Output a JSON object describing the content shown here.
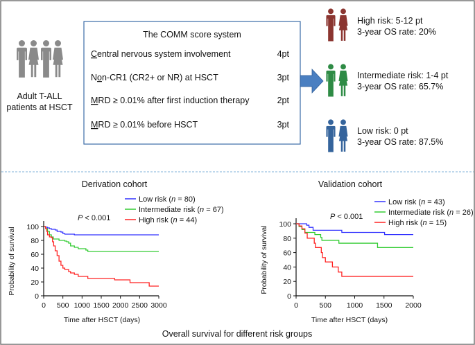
{
  "patients_label": [
    "Adult T-ALL",
    "patients at HSCT"
  ],
  "score_box": {
    "title": "The COMM score system",
    "rows": [
      {
        "pre": "",
        "u": "C",
        "post": "entral nervous system involvement",
        "pt": "4pt"
      },
      {
        "pre": "N",
        "u": "o",
        "post": "n-CR1 (CR2+ or NR) at HSCT",
        "pt": "3pt"
      },
      {
        "pre": "",
        "u": "M",
        "post": "RD ≥ 0.01% after first induction therapy",
        "pt": "2pt"
      },
      {
        "pre": "",
        "u": "M",
        "post": "RD ≥ 0.01% before HSCT",
        "pt": "3pt"
      }
    ]
  },
  "risk_groups": [
    {
      "line1": "High risk: 5-12 pt",
      "line2": "3-year OS rate: 20%",
      "color": "#8b3530"
    },
    {
      "line1": "Intermediate risk: 1-4 pt",
      "line2": "3-year OS rate: 65.7%",
      "color": "#2e8b45"
    },
    {
      "line1": "Low risk: 0 pt",
      "line2": "3-year OS rate: 87.5%",
      "color": "#35649c"
    }
  ],
  "colors": {
    "patients": "#8a8a8a",
    "arrow": "#4a7fc1",
    "box_border": "#3a6aa6",
    "divider": "#7fb0d8"
  },
  "caption": "Overall survival for different risk groups",
  "chart_data": [
    {
      "type": "line",
      "step": true,
      "title": "Derivation cohort",
      "xlabel": "Time after HSCT (days)",
      "ylabel": "Probability of survival",
      "annotation": {
        "p": "P",
        "rest": " < 0.001"
      },
      "xlim": [
        0,
        3000
      ],
      "ylim": [
        0,
        100
      ],
      "xticks": [
        "0",
        "500",
        "1000",
        "1500",
        "2000",
        "2500",
        "3000"
      ],
      "yticks": [
        "0",
        "20",
        "40",
        "60",
        "80",
        "100"
      ],
      "legend_position": "top-right",
      "series": [
        {
          "name": "Low risk",
          "n": "80",
          "color": "#3333ff",
          "x": [
            0,
            50,
            100,
            150,
            200,
            300,
            350,
            450,
            500,
            550,
            800,
            3000
          ],
          "y": [
            100,
            99,
            98,
            97,
            96,
            95,
            93,
            92,
            90,
            89,
            88,
            88
          ]
        },
        {
          "name": "Intermediate risk",
          "n": "67",
          "color": "#33cc33",
          "x": [
            0,
            50,
            100,
            150,
            200,
            250,
            400,
            550,
            600,
            650,
            700,
            800,
            900,
            1100,
            1150,
            3000
          ],
          "y": [
            100,
            97,
            93,
            88,
            85,
            82,
            80,
            79,
            78,
            76,
            72,
            70,
            68,
            66,
            64,
            64
          ]
        },
        {
          "name": "High risk",
          "n": "44",
          "color": "#ff2222",
          "x": [
            0,
            50,
            80,
            100,
            150,
            200,
            230,
            260,
            300,
            350,
            400,
            450,
            500,
            550,
            650,
            700,
            800,
            900,
            1150,
            1850,
            2250,
            2750,
            3000
          ],
          "y": [
            100,
            97,
            93,
            88,
            85,
            84,
            78,
            72,
            65,
            58,
            50,
            44,
            40,
            38,
            35,
            33,
            31,
            28,
            25,
            23,
            19,
            14,
            14
          ]
        }
      ]
    },
    {
      "type": "line",
      "step": true,
      "title": "Validation cohort",
      "xlabel": "Time after HSCT (days)",
      "ylabel": "Probability of survival",
      "annotation": {
        "p": "P",
        "rest": " < 0.001"
      },
      "xlim": [
        0,
        2000
      ],
      "ylim": [
        0,
        100
      ],
      "xticks": [
        "0",
        "500",
        "1000",
        "1500",
        "2000"
      ],
      "yticks": [
        "0",
        "20",
        "40",
        "60",
        "80",
        "100"
      ],
      "legend_position": "top-right",
      "series": [
        {
          "name": "Low risk",
          "n": "43",
          "color": "#3333ff",
          "x": [
            0,
            180,
            220,
            290,
            780,
            1510,
            2000
          ],
          "y": [
            100,
            98,
            95,
            91,
            88,
            85,
            85
          ]
        },
        {
          "name": "Intermediate risk",
          "n": "26",
          "color": "#33cc33",
          "x": [
            0,
            50,
            100,
            150,
            320,
            420,
            440,
            730,
            1390,
            2000
          ],
          "y": [
            100,
            96,
            92,
            88,
            85,
            81,
            77,
            73,
            67,
            67
          ]
        },
        {
          "name": "High risk",
          "n": "15",
          "color": "#ff2222",
          "x": [
            0,
            50,
            100,
            150,
            190,
            310,
            330,
            430,
            450,
            500,
            620,
            720,
            780,
            2000
          ],
          "y": [
            100,
            97,
            93,
            87,
            80,
            73,
            67,
            60,
            53,
            47,
            40,
            33,
            27,
            27
          ]
        }
      ]
    }
  ]
}
